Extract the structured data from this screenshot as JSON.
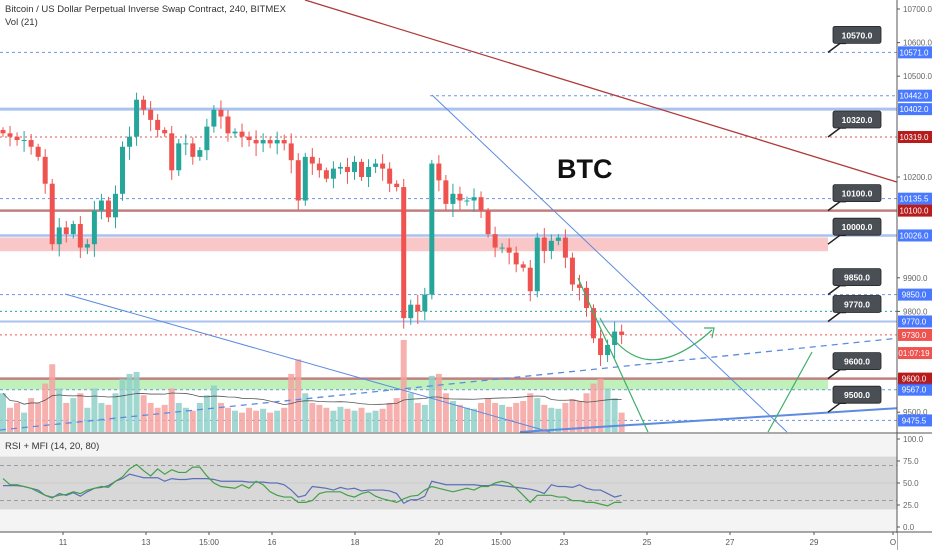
{
  "header": {
    "symbol_title": "Bitcoin / US Dollar Perpetual Inverse Swap Contract, 240, BITMEX",
    "volume_label": "Vol (21)",
    "indicator_label": "RSI + MFI (14, 20, 80)"
  },
  "annotation_text": "BTC",
  "colors": {
    "up": "#26a69a",
    "down": "#ef5350",
    "blue_tag": "#2962ff",
    "dark_red_tag": "#b71c1c",
    "red_tag": "#ef5350",
    "rsi": "#5b6fb8",
    "mfi": "#43a047",
    "callout": "#4a4f55"
  },
  "chart_data": {
    "type": "candlestick",
    "title": "Bitcoin / US Dollar Perpetual Inverse Swap Contract, 240, BITMEX",
    "ylim": [
      9420,
      10720
    ],
    "closes": [
      10330,
      10320,
      10310,
      10310,
      10290,
      10260,
      10180,
      10000,
      10050,
      10030,
      10060,
      9990,
      10000,
      10100,
      10130,
      10080,
      10150,
      10290,
      10320,
      10430,
      10400,
      10370,
      10340,
      10330,
      10220,
      10300,
      10300,
      10260,
      10280,
      10350,
      10400,
      10380,
      10330,
      10335,
      10320,
      10310,
      10300,
      10310,
      10300,
      10310,
      10300,
      10250,
      10130,
      10260,
      10240,
      10220,
      10195,
      10225,
      10230,
      10215,
      10245,
      10200,
      10230,
      10240,
      10225,
      10180,
      10170,
      9780,
      9820,
      9800,
      9850,
      10240,
      10190,
      10120,
      10150,
      10130,
      10130,
      10140,
      10100,
      10030,
      9990,
      9990,
      9975,
      9940,
      9930,
      9860,
      10020,
      9980,
      10010,
      10020,
      9960,
      9880,
      9870,
      9810,
      9720,
      9670,
      9700,
      9740,
      9730
    ],
    "volumes": [
      40,
      25,
      30,
      20,
      35,
      30,
      50,
      70,
      45,
      30,
      35,
      40,
      25,
      45,
      30,
      28,
      40,
      55,
      60,
      62,
      38,
      30,
      25,
      28,
      45,
      30,
      25,
      22,
      30,
      38,
      48,
      30,
      25,
      22,
      20,
      25,
      22,
      24,
      20,
      22,
      25,
      60,
      75,
      40,
      30,
      28,
      25,
      22,
      26,
      24,
      22,
      25,
      20,
      22,
      24,
      30,
      35,
      95,
      40,
      30,
      28,
      58,
      60,
      40,
      32,
      28,
      25,
      24,
      30,
      35,
      30,
      28,
      26,
      30,
      32,
      40,
      35,
      28,
      25,
      24,
      30,
      34,
      32,
      40,
      50,
      55,
      45,
      35,
      20
    ],
    "time_ticks": [
      "11",
      "13",
      "15:00",
      "16",
      "18",
      "20",
      "15:00",
      "23",
      "25",
      "27",
      "29",
      "O"
    ],
    "price_ticks": [
      "10700.0",
      "10600.0",
      "10500.0",
      "10200.0",
      "9900.0",
      "9800.0",
      "9500.0"
    ],
    "price_tags": [
      {
        "text": "10571.0",
        "kind": "blue",
        "price": 10571
      },
      {
        "text": "10442.0",
        "kind": "blue",
        "price": 10442
      },
      {
        "text": "10402.0",
        "kind": "blue",
        "price": 10402
      },
      {
        "text": "10319.0",
        "kind": "darkred",
        "price": 10319
      },
      {
        "text": "10135.5",
        "kind": "blue",
        "price": 10135.5
      },
      {
        "text": "10100.0",
        "kind": "darkred",
        "price": 10100
      },
      {
        "text": "10026.0",
        "kind": "blue",
        "price": 10026
      },
      {
        "text": "9850.0",
        "kind": "blue",
        "price": 9850
      },
      {
        "text": "9770.0",
        "kind": "blue",
        "price": 9770
      },
      {
        "text": "9730.0",
        "kind": "red",
        "price": 9730
      },
      {
        "text": "01:07:19",
        "kind": "red",
        "price": 9676
      },
      {
        "text": "9600.0",
        "kind": "darkred",
        "price": 9600
      },
      {
        "text": "9567.0",
        "kind": "blue",
        "price": 9567
      },
      {
        "text": "9475.5",
        "kind": "blue",
        "price": 9475.5
      }
    ],
    "callouts": [
      {
        "text": "10570.0",
        "price": 10571
      },
      {
        "text": "10320.0",
        "price": 10319
      },
      {
        "text": "10100.0",
        "price": 10100
      },
      {
        "text": "10000.0",
        "price": 10000
      },
      {
        "text": "9850.0",
        "price": 9850
      },
      {
        "text": "9770.0",
        "price": 9770
      },
      {
        "text": "9600.0",
        "price": 9600
      },
      {
        "text": "9500.0",
        "price": 9500
      }
    ],
    "rsi_ticks": [
      "100.0",
      "75.0",
      "50.0",
      "25.0",
      "0.0"
    ],
    "rsi": [
      47,
      47,
      47,
      46,
      44,
      42,
      36,
      33,
      38,
      36,
      39,
      35,
      40,
      44,
      45,
      47,
      52,
      55,
      60,
      58,
      56,
      56,
      56,
      52,
      55,
      54,
      54,
      55,
      55,
      55,
      54,
      52,
      52,
      52,
      52,
      51,
      51,
      51,
      50,
      50,
      48,
      42,
      34,
      36,
      46,
      45,
      44,
      42,
      45,
      43,
      44,
      41,
      42,
      42,
      42,
      41,
      38,
      27,
      31,
      31,
      35,
      52,
      50,
      48,
      48,
      48,
      48,
      48,
      47,
      47,
      48,
      47,
      46,
      45,
      44,
      43,
      41,
      38,
      48,
      46,
      46,
      45,
      48,
      44,
      42,
      42,
      38,
      34,
      36
    ],
    "mfi": [
      55,
      48,
      48,
      46,
      44,
      40,
      36,
      34,
      36,
      37,
      40,
      38,
      42,
      44,
      46,
      45,
      52,
      57,
      66,
      71,
      64,
      58,
      66,
      60,
      65,
      62,
      62,
      68,
      68,
      58,
      50,
      46,
      45,
      44,
      48,
      44,
      52,
      48,
      40,
      36,
      34,
      34,
      28,
      28,
      30,
      38,
      40,
      40,
      40,
      36,
      34,
      38,
      40,
      35,
      32,
      30,
      28,
      32,
      35,
      36,
      42,
      46,
      44,
      42,
      40,
      42,
      44,
      42,
      46,
      46,
      50,
      52,
      50,
      44,
      36,
      28,
      36,
      36,
      36,
      34,
      34,
      30,
      30,
      28,
      28,
      26,
      24,
      28,
      28
    ]
  }
}
